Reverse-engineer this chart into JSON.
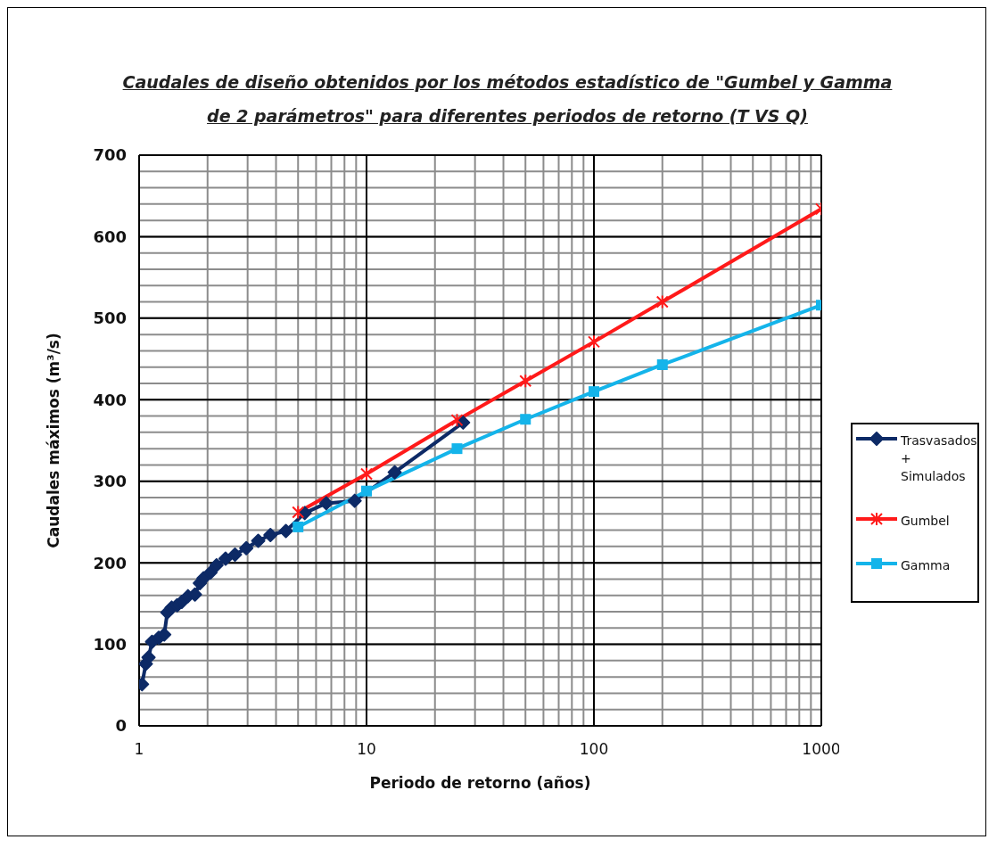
{
  "chart_data": {
    "type": "line",
    "title": "Caudales  de diseño obtenidos por los métodos estadístico de \"Gumbel y Gamma de 2 parámetros\" para diferentes periodos de retorno (T VS Q)",
    "xlabel": "Periodo de retorno (años)",
    "ylabel": "Caudales  máximos (m³/s)",
    "log": "x",
    "grid": true,
    "legend": "right",
    "line_style": "solid",
    "xlim": [
      1,
      1000
    ],
    "xticks": [
      1,
      10,
      100,
      1000
    ],
    "ylim": [
      0,
      700
    ],
    "yticks": [
      0,
      100,
      200,
      300,
      400,
      500,
      600,
      700
    ],
    "series": [
      {
        "name": "Trasvasados + Simulados",
        "color": "#0d2a66",
        "marker": "diamond",
        "x": [
          1.03,
          1.07,
          1.1,
          1.14,
          1.22,
          1.29,
          1.33,
          1.39,
          1.47,
          1.54,
          1.64,
          1.76,
          1.85,
          1.92,
          2.06,
          2.19,
          2.4,
          2.64,
          2.96,
          3.34,
          3.78,
          4.42,
          5.35,
          6.65,
          8.87,
          13.3,
          26.6
        ],
        "values": [
          51,
          76,
          84,
          103,
          108,
          112,
          139,
          145,
          148,
          152,
          159,
          161,
          175,
          181,
          188,
          197,
          205,
          210,
          218,
          227,
          234,
          239,
          261,
          273,
          276,
          311,
          372
        ]
      },
      {
        "name": "Gumbel",
        "color": "#ff1a1a",
        "marker": "cross",
        "x": [
          5,
          10,
          25,
          50,
          100,
          200,
          1000
        ],
        "values": [
          262,
          309,
          375,
          423,
          471,
          520,
          634
        ]
      },
      {
        "name": "Gamma",
        "color": "#14b4ea",
        "marker": "square",
        "x": [
          5,
          10,
          25,
          50,
          100,
          200,
          1000
        ],
        "values": [
          244,
          288,
          340,
          376,
          410,
          443,
          516
        ]
      }
    ]
  }
}
